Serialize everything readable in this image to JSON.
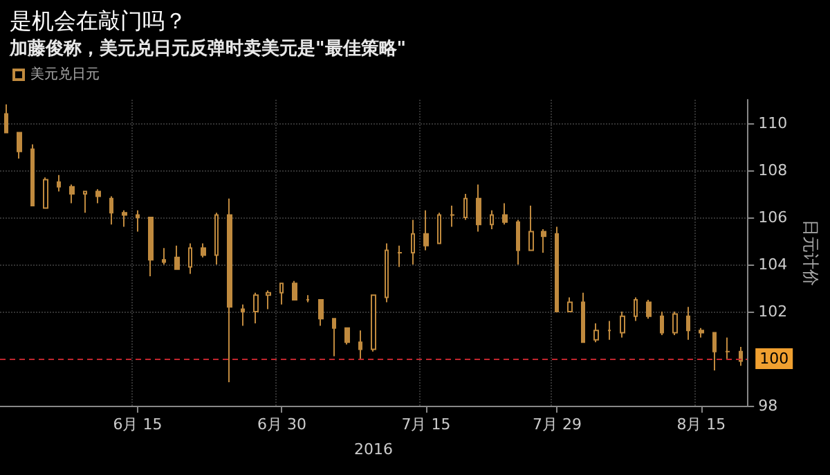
{
  "chart_data": {
    "type": "candlestick",
    "title": "是机会在敲门吗？",
    "subtitle": "加藤俊称，美元兑日元反弹时卖美元是\"最佳策略\"",
    "xlabel": "2016",
    "ylabel": "日元计价",
    "categories": [
      null,
      null,
      null,
      null,
      null,
      null,
      null,
      null,
      null,
      null,
      "6月 15",
      null,
      null,
      null,
      null,
      null,
      null,
      null,
      null,
      null,
      null,
      "6月 30",
      null,
      null,
      null,
      null,
      null,
      null,
      null,
      null,
      null,
      null,
      "7月 15",
      null,
      null,
      null,
      null,
      null,
      null,
      null,
      null,
      null,
      "7月 29",
      null,
      null,
      null,
      null,
      null,
      null,
      null,
      null,
      null,
      null,
      "8月 15",
      null,
      null,
      null
    ],
    "series": [
      {
        "name": "美元兑日元",
        "color": "#c08a3e",
        "ohlc": [
          [
            110.4,
            110.8,
            109.6,
            109.6
          ],
          [
            109.6,
            109.6,
            108.5,
            108.8
          ],
          [
            108.9,
            109.1,
            106.5,
            106.5
          ],
          [
            106.4,
            107.7,
            106.4,
            107.6
          ],
          [
            107.5,
            107.8,
            107.1,
            107.3
          ],
          [
            107.3,
            107.4,
            106.6,
            107.0
          ],
          [
            107.0,
            107.1,
            106.2,
            107.1
          ],
          [
            107.1,
            107.2,
            106.6,
            106.9
          ],
          [
            106.8,
            106.9,
            105.7,
            106.2
          ],
          [
            106.2,
            106.3,
            105.6,
            106.1
          ],
          [
            106.1,
            106.3,
            105.4,
            106.0
          ],
          [
            106.0,
            106.0,
            103.5,
            104.2
          ],
          [
            104.2,
            104.7,
            104.0,
            104.1
          ],
          [
            104.3,
            104.8,
            103.8,
            103.8
          ],
          [
            103.9,
            104.9,
            103.6,
            104.7
          ],
          [
            104.7,
            104.9,
            104.3,
            104.4
          ],
          [
            104.4,
            106.2,
            104.0,
            106.1
          ],
          [
            106.1,
            106.8,
            99.0,
            102.2
          ],
          [
            102.1,
            102.3,
            101.4,
            102.0
          ],
          [
            102.0,
            102.8,
            101.5,
            102.7
          ],
          [
            102.7,
            102.9,
            102.1,
            102.8
          ],
          [
            102.8,
            103.2,
            102.3,
            103.2
          ],
          [
            103.2,
            103.3,
            102.5,
            102.5
          ],
          [
            102.5,
            102.7,
            102.4,
            102.5
          ],
          [
            102.5,
            102.5,
            101.4,
            101.7
          ],
          [
            101.7,
            101.7,
            100.1,
            101.3
          ],
          [
            101.3,
            101.3,
            100.6,
            100.7
          ],
          [
            100.7,
            101.2,
            100.0,
            100.4
          ],
          [
            100.4,
            102.7,
            100.3,
            102.7
          ],
          [
            102.6,
            104.9,
            102.4,
            104.6
          ],
          [
            104.5,
            104.8,
            103.9,
            104.5
          ],
          [
            104.5,
            105.9,
            104.0,
            105.3
          ],
          [
            105.3,
            106.3,
            104.6,
            104.8
          ],
          [
            104.9,
            106.2,
            104.9,
            106.1
          ],
          [
            106.1,
            106.5,
            105.6,
            106.1
          ],
          [
            106.0,
            107.0,
            105.9,
            106.8
          ],
          [
            106.8,
            107.4,
            105.4,
            105.7
          ],
          [
            105.7,
            106.3,
            105.5,
            106.1
          ],
          [
            106.1,
            106.6,
            105.7,
            105.8
          ],
          [
            105.8,
            105.9,
            104.0,
            104.6
          ],
          [
            104.6,
            106.5,
            104.6,
            105.4
          ],
          [
            105.4,
            105.5,
            104.5,
            105.2
          ],
          [
            105.3,
            105.6,
            102.0,
            102.0
          ],
          [
            102.0,
            102.6,
            102.0,
            102.4
          ],
          [
            102.4,
            102.8,
            100.7,
            100.7
          ],
          [
            100.8,
            101.5,
            100.7,
            101.2
          ],
          [
            101.2,
            101.6,
            100.8,
            101.2
          ],
          [
            101.1,
            102.0,
            100.9,
            101.8
          ],
          [
            101.8,
            102.6,
            101.6,
            102.5
          ],
          [
            102.4,
            102.5,
            101.7,
            101.8
          ],
          [
            101.8,
            102.0,
            101.0,
            101.1
          ],
          [
            101.1,
            102.0,
            101.0,
            101.9
          ],
          [
            101.8,
            102.2,
            100.8,
            101.2
          ],
          [
            101.2,
            101.3,
            100.9,
            101.1
          ],
          [
            101.1,
            101.1,
            99.5,
            100.3
          ],
          [
            100.3,
            100.9,
            100.0,
            100.3
          ],
          [
            100.3,
            100.5,
            99.7,
            99.9
          ]
        ]
      }
    ],
    "ylim": [
      98,
      111
    ],
    "yticks": [
      98,
      102,
      104,
      106,
      108,
      110
    ],
    "ref_lines": [
      {
        "axis": "y",
        "value": 100,
        "label": "100",
        "color": "#c0262d",
        "line_style": "dashed"
      }
    ],
    "grid": true,
    "legend": "top left"
  }
}
